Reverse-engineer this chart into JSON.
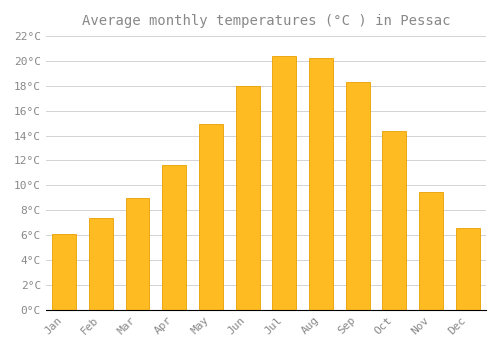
{
  "title": "Average monthly temperatures (°C ) in Pessac",
  "months": [
    "Jan",
    "Feb",
    "Mar",
    "Apr",
    "May",
    "Jun",
    "Jul",
    "Aug",
    "Sep",
    "Oct",
    "Nov",
    "Dec"
  ],
  "values": [
    6.1,
    7.4,
    9.0,
    11.6,
    14.9,
    18.0,
    20.4,
    20.2,
    18.3,
    14.4,
    9.5,
    6.6
  ],
  "bar_color_main": "#FFBB22",
  "bar_color_edge": "#E8A000",
  "background_color": "#FFFFFF",
  "grid_color": "#CCCCCC",
  "text_color": "#888888",
  "axis_color": "#000000",
  "ylim": [
    0,
    22
  ],
  "ytick_step": 2,
  "title_fontsize": 10,
  "tick_fontsize": 8
}
